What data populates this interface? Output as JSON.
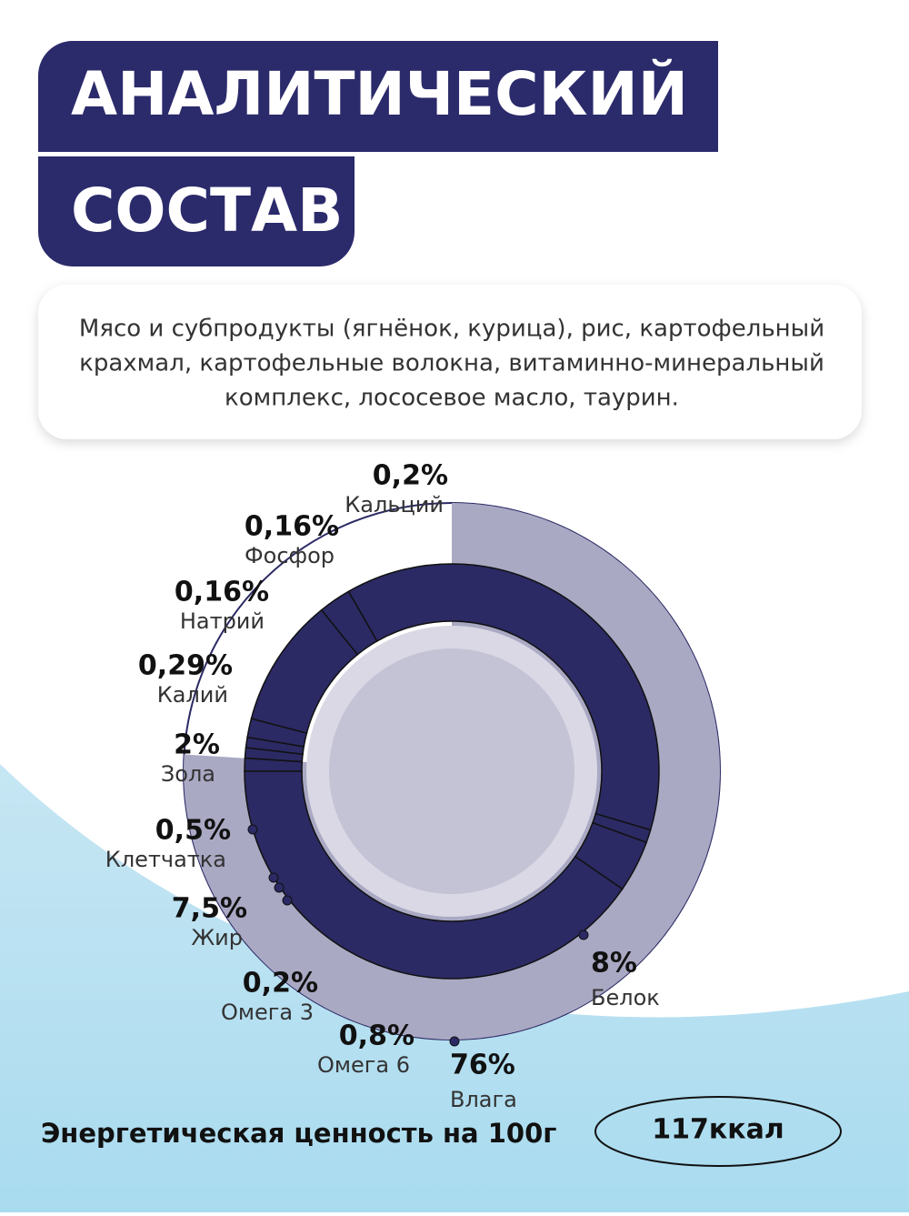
{
  "header": {
    "title_lines": [
      "АНАЛИТИЧЕСКИЙ",
      "СОСТАВ"
    ]
  },
  "composition": {
    "lines": [
      "Мясо и субпродукты (ягнёнок, курица), рис, картофельный",
      "крахмал, картофельные волокна, витаминно-минеральный",
      "комплекс, лососевое масло, таурин."
    ]
  },
  "chart_data": {
    "type": "sunburst",
    "categories": [
      "Кальций",
      "Фосфор",
      "Натрий",
      "Калий",
      "Зола",
      "Клетчатка",
      "Жир",
      "Омега 3",
      "Омега 6",
      "Белок",
      "Влага"
    ],
    "values": [
      0.2,
      0.16,
      0.16,
      0.29,
      2,
      0.5,
      7.5,
      0.2,
      0.8,
      8,
      76
    ],
    "value_labels": [
      "0,2%",
      "0,16%",
      "0,16%",
      "0,29%",
      "2%",
      "0,5%",
      "7,5%",
      "0,2%",
      "0,8%",
      "8%",
      "76%"
    ],
    "colors": {
      "outer": "#aaa9c4",
      "inner": "#2b2a64",
      "center": "#c4c3d6"
    }
  },
  "energy": {
    "label": "Энергетическая ценность на 100г",
    "value": "117ккал"
  }
}
